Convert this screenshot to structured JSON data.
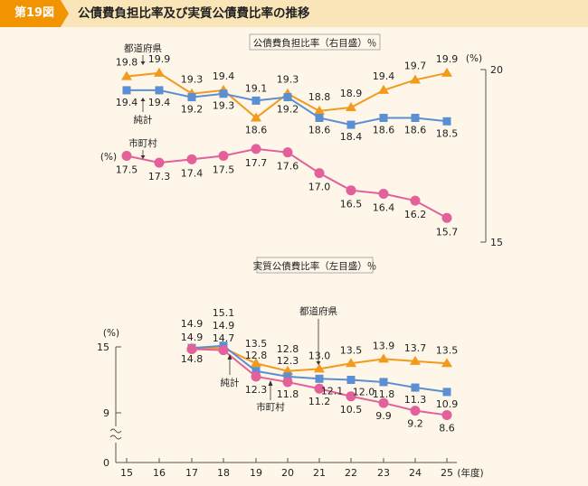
{
  "header": {
    "badge": "第19図",
    "title": "公債費負担比率及び実質公債費比率の推移"
  },
  "chart_data": [
    {
      "type": "line",
      "title": "公債費負担比率（右目盛）％",
      "ylabel": "(%)",
      "ylim": [
        15,
        20
      ],
      "y_ticks": [
        "15",
        "20"
      ],
      "categories": [
        "15",
        "16",
        "17",
        "18",
        "19",
        "20",
        "21",
        "22",
        "23",
        "24",
        "25"
      ],
      "series": [
        {
          "name": "都道府県",
          "key": "pref",
          "color": "#f29a1c",
          "marker": "triangle",
          "values": [
            19.8,
            19.9,
            19.3,
            19.4,
            18.6,
            19.3,
            18.8,
            18.9,
            19.4,
            19.7,
            19.9
          ],
          "labels": [
            "19.8",
            "19.9",
            "19.3",
            "19.4",
            "18.6",
            "19.3",
            "18.8",
            "18.9",
            "19.4",
            "19.7",
            "19.9"
          ]
        },
        {
          "name": "純計",
          "key": "net",
          "color": "#5b8fd4",
          "marker": "square",
          "values": [
            19.4,
            19.4,
            19.2,
            19.3,
            19.1,
            19.2,
            18.6,
            18.4,
            18.6,
            18.6,
            18.5
          ],
          "labels": [
            "19.4",
            "19.4",
            "19.2",
            "19.3",
            "19.1",
            "19.2",
            "18.6",
            "18.4",
            "18.6",
            "18.6",
            "18.5"
          ]
        },
        {
          "name": "市町村",
          "key": "muni",
          "color": "#e3609a",
          "marker": "circle",
          "values": [
            17.5,
            17.3,
            17.4,
            17.5,
            17.7,
            17.6,
            17.0,
            16.5,
            16.4,
            16.2,
            15.7
          ],
          "labels": [
            "17.5",
            "17.3",
            "17.4",
            "17.5",
            "17.7",
            "17.6",
            "17.0",
            "16.5",
            "16.4",
            "16.2",
            "15.7"
          ]
        }
      ],
      "annotations": {
        "pref": "都道府県",
        "net": "純計",
        "muni": "市町村",
        "muni_unit": "(%)"
      }
    },
    {
      "type": "line",
      "title": "実質公債費比率（左目盛）％",
      "ylabel": "(%)",
      "xlabel": "(年度)",
      "ylim": [
        0,
        15
      ],
      "y_ticks": [
        "0",
        "9",
        "15"
      ],
      "categories": [
        "15",
        "16",
        "17",
        "18",
        "19",
        "20",
        "21",
        "22",
        "23",
        "24",
        "25"
      ],
      "series": [
        {
          "name": "都道府県",
          "key": "pref",
          "color": "#f29a1c",
          "marker": "triangle",
          "values": [
            null,
            null,
            14.9,
            14.9,
            13.5,
            12.8,
            13.0,
            13.5,
            13.9,
            13.7,
            13.5
          ]
        },
        {
          "name": "純計",
          "key": "net",
          "color": "#5b8fd4",
          "marker": "square",
          "values": [
            null,
            null,
            14.9,
            15.1,
            12.8,
            12.3,
            12.1,
            12.0,
            11.8,
            11.3,
            10.9
          ]
        },
        {
          "name": "市町村",
          "key": "muni",
          "color": "#e3609a",
          "marker": "circle",
          "values": [
            null,
            null,
            14.8,
            14.7,
            12.3,
            11.8,
            11.2,
            10.5,
            9.9,
            9.2,
            8.6
          ]
        }
      ],
      "value_labels": {
        "y17": [
          "14.9",
          "14.9"
        ],
        "y17_low": "14.8",
        "y18": [
          "15.1",
          "14.9",
          "14.7"
        ],
        "y19": [
          "13.5",
          "12.8"
        ],
        "y19_low": "12.3",
        "y20": [
          "12.8",
          "12.3"
        ],
        "y20_low": "11.8",
        "pref_rest": [
          "13.0",
          "13.5",
          "13.9",
          "13.7",
          "13.5"
        ],
        "net_rest": [
          "12.1",
          "12.0",
          "11.8",
          "11.3",
          "10.9"
        ],
        "muni_rest": [
          "11.2",
          "10.5",
          "9.9",
          "9.2",
          "8.6"
        ]
      },
      "annotations": {
        "pref": "都道府県",
        "net": "純計",
        "muni": "市町村"
      }
    }
  ]
}
